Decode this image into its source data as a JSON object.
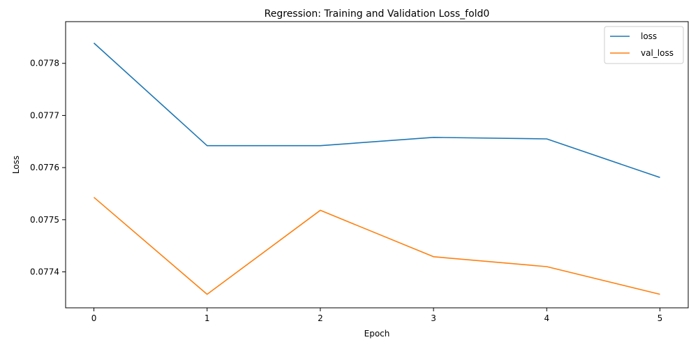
{
  "chart_data": {
    "type": "line",
    "title": "Regression: Training and Validation Loss_fold0",
    "xlabel": "Epoch",
    "ylabel": "Loss",
    "x": [
      0,
      1,
      2,
      3,
      4,
      5
    ],
    "xticks": [
      "0",
      "1",
      "2",
      "3",
      "4",
      "5"
    ],
    "yticks": [
      "0.07740",
      "0.07750",
      "0.07760",
      "0.07770",
      "0.07780"
    ],
    "ytick_labels": [
      "0.0774",
      "0.0775",
      "0.0776",
      "0.0777",
      "0.0778"
    ],
    "xlim": [
      -0.25,
      5.25
    ],
    "ylim": [
      0.077331,
      0.07788
    ],
    "grid": false,
    "legend_position": "top-right",
    "series": [
      {
        "name": "loss",
        "color": "#1f77b4",
        "values": [
          0.077839,
          0.077642,
          0.077642,
          0.077658,
          0.077655,
          0.077581
        ]
      },
      {
        "name": "val_loss",
        "color": "#ff7f0e",
        "values": [
          0.077543,
          0.077357,
          0.077518,
          0.077429,
          0.07741,
          0.077357
        ]
      }
    ]
  }
}
